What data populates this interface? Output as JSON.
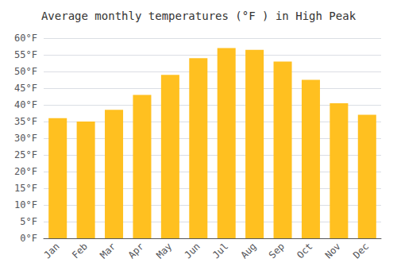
{
  "chart_data": {
    "type": "bar",
    "title": "Average monthly temperatures (°F ) in High Peak",
    "categories": [
      "Jan",
      "Feb",
      "Mar",
      "Apr",
      "May",
      "Jun",
      "Jul",
      "Aug",
      "Sep",
      "Oct",
      "Nov",
      "Dec"
    ],
    "values": [
      36,
      35,
      38.5,
      43,
      49,
      54,
      57,
      56.5,
      53,
      47.5,
      40.5,
      37
    ],
    "color": "#FFC020",
    "ylim": [
      0,
      60
    ],
    "yticks": [
      {
        "value": 0,
        "label": "0°F"
      },
      {
        "value": 5,
        "label": "5°F"
      },
      {
        "value": 10,
        "label": "10°F"
      },
      {
        "value": 15,
        "label": "15°F"
      },
      {
        "value": 20,
        "label": "20°F"
      },
      {
        "value": 25,
        "label": "25°F"
      },
      {
        "value": 30,
        "label": "30°F"
      },
      {
        "value": 35,
        "label": "35°F"
      },
      {
        "value": 40,
        "label": "40°F"
      },
      {
        "value": 45,
        "label": "45°F"
      },
      {
        "value": 50,
        "label": "50°F"
      },
      {
        "value": 55,
        "label": "55°F"
      },
      {
        "value": 60,
        "label": "60°F"
      }
    ],
    "grid": true
  }
}
